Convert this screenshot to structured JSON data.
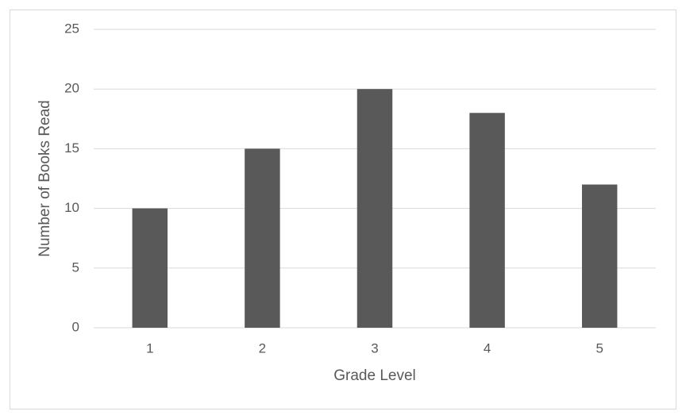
{
  "chart_data": {
    "type": "bar",
    "x_label": "Grade Level",
    "y_label": "Number of Books Read",
    "categories": [
      "1",
      "2",
      "3",
      "4",
      "5"
    ],
    "values": [
      10,
      15,
      20,
      18,
      12
    ],
    "color": "#595959",
    "ylim": [
      0,
      25
    ],
    "yticks": [
      0,
      5,
      10,
      15,
      20,
      25
    ],
    "grid": true
  }
}
